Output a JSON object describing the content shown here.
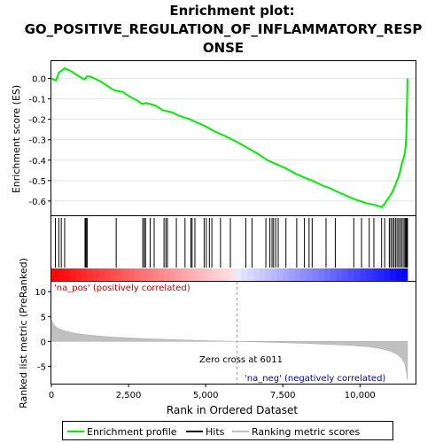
{
  "chart_data": {
    "type": "line",
    "title": "Enrichment plot: GO_POSITIVE_REGULATION_OF_INFLAMMATORY_RESPONSE",
    "title_lines": [
      "Enrichment plot:",
      "GO_POSITIVE_REGULATION_OF_INFLAMMATORY_RESP",
      "ONSE"
    ],
    "top_panel": {
      "ylabel": "Enrichment score (ES)",
      "ylim": [
        -0.67,
        0.085
      ],
      "yticks": [
        0.0,
        -0.1,
        -0.2,
        -0.3,
        -0.4,
        -0.5,
        -0.6
      ],
      "ytick_labels": [
        "0.0",
        "-0.1",
        "-0.2",
        "-0.3",
        "-0.4",
        "-0.5",
        "-0.6"
      ],
      "grid": true,
      "series": [
        {
          "name": "Enrichment profile",
          "color": "#00ee00",
          "x": [
            0,
            150,
            250,
            350,
            420,
            500,
            650,
            800,
            950,
            1080,
            1150,
            1250,
            1400,
            1600,
            1800,
            2000,
            2100,
            2300,
            2500,
            2800,
            2950,
            3050,
            3200,
            3400,
            3600,
            3750,
            3900,
            4100,
            4300,
            4500,
            4700,
            5000,
            5300,
            5600,
            6000,
            6300,
            6700,
            7000,
            7300,
            7600,
            7900,
            8200,
            8450,
            8600,
            8800,
            9000,
            9200,
            9500,
            9800,
            10000,
            10100,
            10200,
            10350,
            10500,
            10600,
            10700,
            10750,
            10800,
            10850,
            10950,
            11050,
            11150,
            11250,
            11300,
            11350,
            11400,
            11450,
            11480,
            11500,
            11510,
            11520,
            11530,
            11540
          ],
          "y": [
            0.0,
            -0.01,
            0.03,
            0.04,
            0.05,
            0.045,
            0.035,
            0.02,
            0.005,
            -0.005,
            0.01,
            0.01,
            0.0,
            -0.015,
            -0.035,
            -0.055,
            -0.06,
            -0.065,
            -0.085,
            -0.11,
            -0.125,
            -0.12,
            -0.125,
            -0.135,
            -0.155,
            -0.16,
            -0.165,
            -0.18,
            -0.19,
            -0.2,
            -0.215,
            -0.235,
            -0.26,
            -0.28,
            -0.31,
            -0.335,
            -0.37,
            -0.4,
            -0.42,
            -0.44,
            -0.465,
            -0.485,
            -0.5,
            -0.51,
            -0.525,
            -0.535,
            -0.55,
            -0.57,
            -0.59,
            -0.6,
            -0.605,
            -0.61,
            -0.615,
            -0.62,
            -0.625,
            -0.63,
            -0.62,
            -0.615,
            -0.6,
            -0.58,
            -0.555,
            -0.52,
            -0.48,
            -0.455,
            -0.42,
            -0.395,
            -0.37,
            -0.33,
            -0.28,
            -0.22,
            -0.15,
            -0.08,
            0.0
          ]
        }
      ]
    },
    "hits_panel": {
      "hit_positions": [
        130,
        240,
        320,
        430,
        1090,
        1110,
        1130,
        1160,
        2100,
        2960,
        3010,
        3050,
        3200,
        3330,
        3650,
        3710,
        3760,
        4050,
        4330,
        4520,
        4560,
        4650,
        4950,
        5020,
        5120,
        5200,
        5480,
        5800,
        6300,
        6500,
        6950,
        7080,
        7150,
        7200,
        7270,
        7350,
        7600,
        7950,
        8200,
        8350,
        8450,
        8900,
        9200,
        9800,
        10050,
        10300,
        10450,
        10700,
        10800,
        10950,
        11000,
        11050,
        11100,
        11150,
        11200,
        11250,
        11300,
        11350,
        11400,
        11450,
        11480,
        11500,
        11520,
        11540
      ]
    },
    "colorbar": {
      "pos_label": "'na_pos' (positively correlated)",
      "neg_label": "'na_neg' (negatively correlated)",
      "pos_color": "#ff0000",
      "neg_color": "#0000ff"
    },
    "metric_panel": {
      "ylabel": "Ranked list metric (PreRanked)",
      "xlabel": "Rank in Ordered Dataset",
      "ylim": [
        -8.5,
        12
      ],
      "yticks": [
        10,
        5,
        0,
        -5
      ],
      "ytick_labels": [
        "10",
        "5",
        "0",
        "-5"
      ],
      "xlim": [
        0,
        11800
      ],
      "xticks": [
        0,
        2500,
        5000,
        7500,
        10000
      ],
      "xtick_labels": [
        "0",
        "2,500",
        "5,000",
        "7,500",
        "10,000"
      ],
      "zero_cross_label": "Zero cross at 6011",
      "zero_cross": 6011,
      "fill_color": "#c0c0c0",
      "profile_x": [
        0,
        50,
        150,
        300,
        500,
        800,
        1200,
        2000,
        3000,
        4000,
        5000,
        6011,
        7000,
        8000,
        9000,
        9800,
        10300,
        10700,
        11000,
        11200,
        11350,
        11450,
        11500,
        11540
      ],
      "profile_y": [
        4.5,
        3.6,
        2.9,
        2.4,
        2.0,
        1.6,
        1.25,
        0.85,
        0.55,
        0.35,
        0.15,
        0.0,
        -0.15,
        -0.35,
        -0.6,
        -0.85,
        -1.1,
        -1.5,
        -2.0,
        -2.6,
        -3.4,
        -4.5,
        -6.0,
        -7.8
      ]
    },
    "legend": {
      "items": [
        {
          "label": "Enrichment profile",
          "color": "#00ee00"
        },
        {
          "label": "Hits",
          "color": "#000000"
        },
        {
          "label": "Ranking metric scores",
          "color": "#c0c0c0"
        }
      ]
    }
  }
}
